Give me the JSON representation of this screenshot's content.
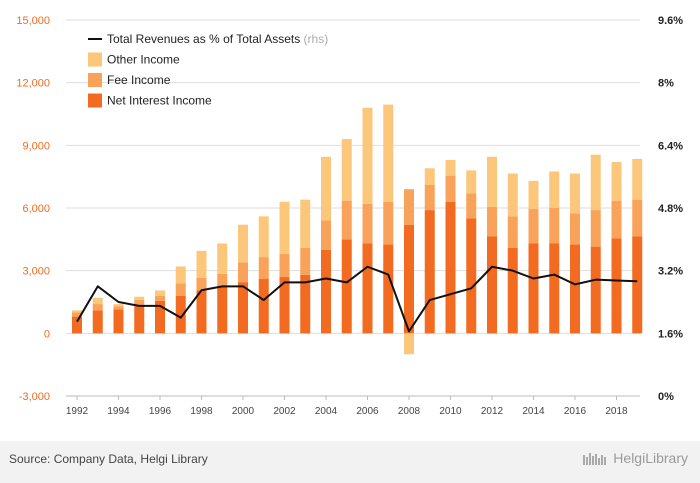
{
  "chart_data": {
    "type": "bar",
    "stacked": true,
    "categories": [
      "1992",
      "1993",
      "1994",
      "1995",
      "1996",
      "1997",
      "1998",
      "1999",
      "2000",
      "2001",
      "2002",
      "2003",
      "2004",
      "2005",
      "2006",
      "2007",
      "2008",
      "2009",
      "2010",
      "2011",
      "2012",
      "2013",
      "2014",
      "2015",
      "2016",
      "2017",
      "2018",
      "2019"
    ],
    "x_tick_labels": [
      "1992",
      "1994",
      "1996",
      "1998",
      "2000",
      "2002",
      "2004",
      "2006",
      "2008",
      "2010",
      "2012",
      "2014",
      "2016",
      "2018"
    ],
    "series": [
      {
        "name": "Net Interest Income",
        "color": "#f26b21",
        "values": [
          800,
          1100,
          1150,
          1300,
          1550,
          1800,
          2050,
          2250,
          2450,
          2600,
          2700,
          2800,
          4000,
          4500,
          4300,
          4250,
          5200,
          5900,
          6300,
          5500,
          4650,
          4100,
          4300,
          4300,
          4250,
          4150,
          4550,
          4650
        ]
      },
      {
        "name": "Fee Income",
        "color": "#f8a25a",
        "values": [
          200,
          300,
          150,
          300,
          250,
          600,
          600,
          600,
          950,
          1050,
          1100,
          1300,
          1400,
          1850,
          1900,
          2050,
          1700,
          1200,
          1250,
          1200,
          1400,
          1500,
          1650,
          1700,
          1500,
          1750,
          1800,
          1750
        ]
      },
      {
        "name": "Other Income",
        "color": "#fcc77a",
        "values": [
          100,
          300,
          100,
          150,
          250,
          800,
          1300,
          1450,
          1800,
          1950,
          2500,
          2300,
          3050,
          2950,
          4600,
          4650,
          -1000,
          800,
          750,
          1100,
          2400,
          2050,
          1350,
          1750,
          1900,
          2650,
          1850,
          1950
        ]
      }
    ],
    "line_series": {
      "name": "Total Revenues as % of Total Assets",
      "axis": "rhs",
      "color": "#111111",
      "values": [
        1.9,
        2.8,
        2.4,
        2.3,
        2.3,
        2.0,
        2.7,
        2.8,
        2.8,
        2.45,
        2.9,
        2.9,
        3.0,
        2.9,
        3.3,
        3.1,
        1.65,
        2.45,
        2.6,
        2.75,
        3.3,
        3.2,
        3.0,
        3.1,
        2.85,
        2.97,
        2.95,
        2.93
      ]
    },
    "y_left": {
      "min": -3000,
      "max": 15000,
      "ticks": [
        -3000,
        0,
        3000,
        6000,
        9000,
        12000,
        15000
      ],
      "tick_labels": [
        "-3,000",
        "0",
        "3,000",
        "6,000",
        "9,000",
        "12,000",
        "15,000"
      ],
      "color": "#f26b21"
    },
    "y_right": {
      "min": 0,
      "max": 9.6,
      "ticks": [
        0,
        1.6,
        3.2,
        4.8,
        6.4,
        8,
        9.6
      ],
      "tick_labels": [
        "0%",
        "1.6%",
        "3.2%",
        "4.8%",
        "6.4%",
        "8%",
        "9.6%"
      ]
    },
    "legend": {
      "placement": "top-left",
      "items": [
        {
          "label": "Total Revenues as % of Total Assets",
          "suffix": "(rhs)",
          "kind": "line",
          "color": "#111111"
        },
        {
          "label": "Other Income",
          "kind": "box",
          "color": "#fcc77a"
        },
        {
          "label": "Fee Income",
          "kind": "box",
          "color": "#f8a25a"
        },
        {
          "label": "Net Interest Income",
          "kind": "box",
          "color": "#f26b21"
        }
      ]
    },
    "grid": true
  },
  "footer": {
    "source": "Source: Company Data, Helgi Library",
    "brand": "HelgiLibrary"
  }
}
